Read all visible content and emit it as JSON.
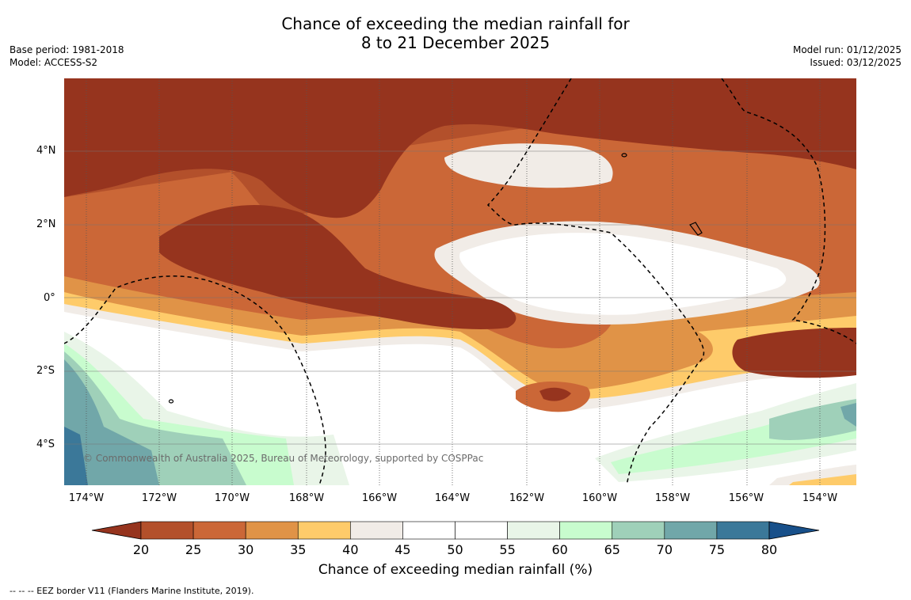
{
  "header": {
    "title_line1": "Chance of exceeding the median rainfall for",
    "title_line2": "8 to 21 December 2025",
    "base_period": "Base period: 1981-2018",
    "model": "Model: ACCESS-S2",
    "model_run": "Model run: 01/12/2025",
    "issued": "Issued: 03/12/2025"
  },
  "map": {
    "copyright": "© Commonwealth of Australia 2025, Bureau of Meteorology, supported by COSPPac",
    "lat_labels": [
      "4°N",
      "2°N",
      "0°",
      "2°S",
      "4°S"
    ],
    "lon_labels": [
      "174°W",
      "172°W",
      "170°W",
      "168°W",
      "166°W",
      "164°W",
      "162°W",
      "160°W",
      "158°W",
      "156°W",
      "154°W"
    ]
  },
  "legend": {
    "ticks": [
      "20",
      "25",
      "30",
      "35",
      "40",
      "45",
      "50",
      "55",
      "60",
      "65",
      "70",
      "75",
      "80"
    ],
    "label": "Chance of exceeding median rainfall (%)",
    "colors": [
      "#96341e",
      "#b3502b",
      "#cb6737",
      "#e09347",
      "#fecb6a",
      "#f1ece7",
      "#ffffff",
      "#ffffff",
      "#e9f5e8",
      "#c8fcce",
      "#9fd0b9",
      "#71a7a9",
      "#3b7899",
      "#18508a"
    ]
  },
  "footnote": "--  --  -- EEZ border V11 (Flanders Marine Institute, 2019)."
}
